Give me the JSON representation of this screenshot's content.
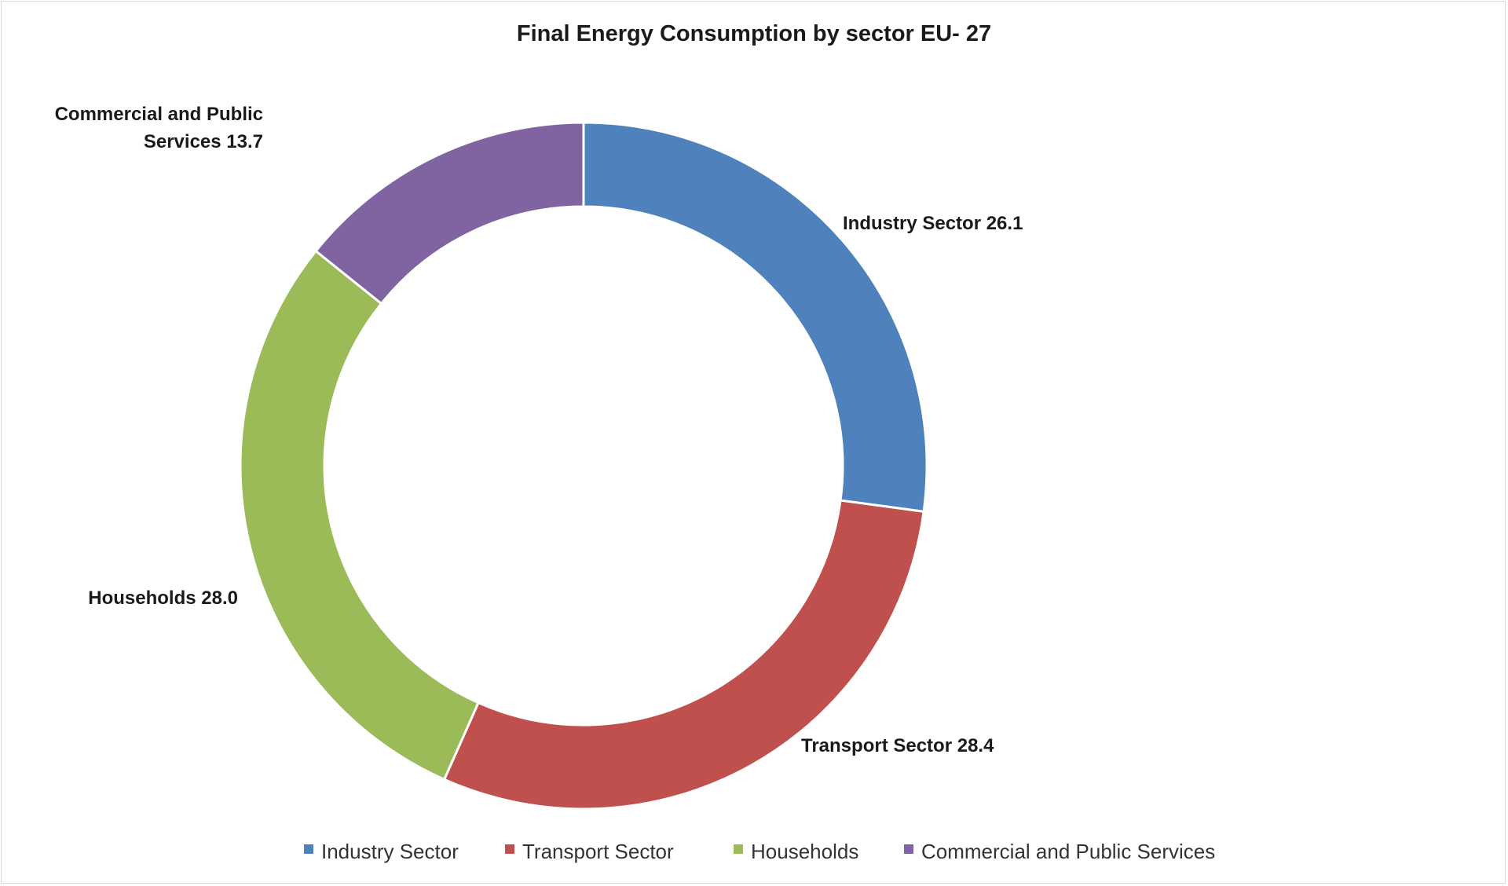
{
  "chart_data": {
    "type": "pie",
    "variant": "donut",
    "title": "Final Energy Consumption by sector EU- 27",
    "legend_position": "bottom",
    "slices": [
      {
        "name": "Industry Sector",
        "value": 26.1,
        "color": "#4F81BD",
        "label_lines": [
          "Industry Sector  26.1"
        ]
      },
      {
        "name": "Transport  Sector",
        "value": 28.4,
        "color": "#C0504D",
        "label_lines": [
          "Transport  Sector  28.4"
        ]
      },
      {
        "name": "Households",
        "value": 28.0,
        "color": "#9BBB59",
        "label_lines": [
          "Households  28.0"
        ]
      },
      {
        "name": "Commercial and Public Services",
        "value": 13.7,
        "color": "#8064A2",
        "label_lines": [
          "Commercial and Public",
          "Services 13.7"
        ]
      }
    ]
  }
}
